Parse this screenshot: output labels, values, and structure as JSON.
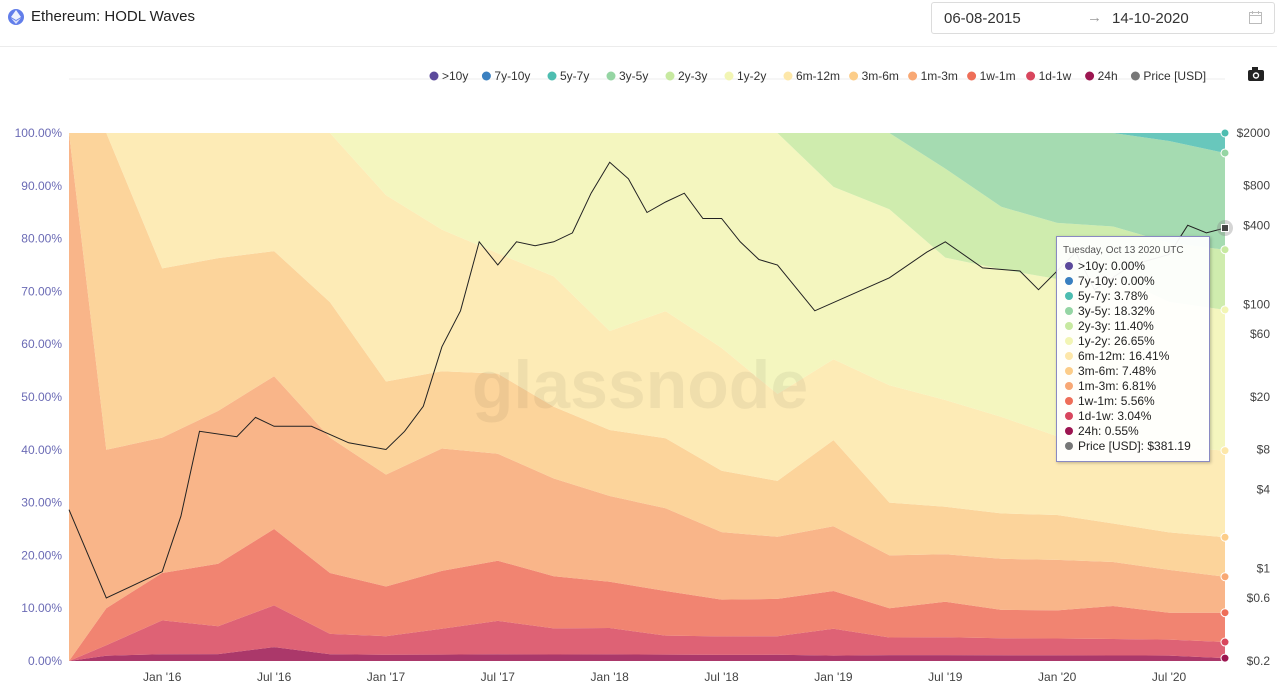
{
  "header": {
    "title": "Ethereum: HODL Waves",
    "date_start": "06-08-2015",
    "date_arrow": "→",
    "date_end": "14-10-2020"
  },
  "watermark": "glassnode",
  "tooltip": {
    "date": "Tuesday, Oct 13 2020 UTC",
    "rows": [
      {
        "label": ">10y",
        "value": "0.00%",
        "color": "#5b4a9b"
      },
      {
        "label": "7y-10y",
        "value": "0.00%",
        "color": "#3a80c0"
      },
      {
        "label": "5y-7y",
        "value": "3.78%",
        "color": "#4dbdb0"
      },
      {
        "label": "3y-5y",
        "value": "18.32%",
        "color": "#95d5a3"
      },
      {
        "label": "2y-3y",
        "value": "11.40%",
        "color": "#c7e9a0"
      },
      {
        "label": "1y-2y",
        "value": "26.65%",
        "color": "#f2f5b4"
      },
      {
        "label": "6m-12m",
        "value": "16.41%",
        "color": "#fde7a9"
      },
      {
        "label": "3m-6m",
        "value": "7.48%",
        "color": "#fccd89"
      },
      {
        "label": "1m-3m",
        "value": "6.81%",
        "color": "#f8a874"
      },
      {
        "label": "1w-1m",
        "value": "5.56%",
        "color": "#ee6e58"
      },
      {
        "label": "1d-1w",
        "value": "3.04%",
        "color": "#d8465d"
      },
      {
        "label": "24h",
        "value": "0.55%",
        "color": "#9c1550"
      },
      {
        "label": "Price [USD]",
        "value": "$381.19",
        "color": "#777777"
      }
    ]
  },
  "chart_data": {
    "type": "area",
    "title": "Ethereum: HODL Waves",
    "stacking": "percent",
    "legend_position": "top-right",
    "grid": false,
    "x_ticks": [
      "Jan '16",
      "Jul '16",
      "Jan '17",
      "Jul '17",
      "Jan '18",
      "Jul '18",
      "Jan '19",
      "Jul '19",
      "Jan '20",
      "Jul '20"
    ],
    "x_dates": [
      "2015-08",
      "2015-10",
      "2016-01",
      "2016-04",
      "2016-07",
      "2016-10",
      "2017-01",
      "2017-04",
      "2017-07",
      "2017-10",
      "2018-01",
      "2018-04",
      "2018-07",
      "2018-10",
      "2019-01",
      "2019-04",
      "2019-07",
      "2019-10",
      "2020-01",
      "2020-04",
      "2020-07",
      "2020-10"
    ],
    "y_left_ticks": [
      "0.00%",
      "10.00%",
      "20.00%",
      "30.00%",
      "40.00%",
      "50.00%",
      "60.00%",
      "70.00%",
      "80.00%",
      "90.00%",
      "100.00%"
    ],
    "ylim_left": [
      0,
      100
    ],
    "y_right_ticks": [
      "$0.2",
      "$0.6",
      "$1",
      "$4",
      "$8",
      "$20",
      "$60",
      "$100",
      "$400",
      "$800",
      "$2000"
    ],
    "y_right_scale": "log",
    "ylim_right": [
      0.2,
      2000
    ],
    "series": [
      {
        "name": ">10y",
        "color": "#5b4a9b",
        "values": [
          0,
          0,
          0,
          0,
          0,
          0,
          0,
          0,
          0,
          0,
          0,
          0,
          0,
          0,
          0,
          0,
          0,
          0,
          0,
          0,
          0,
          0
        ]
      },
      {
        "name": "7y-10y",
        "color": "#3a80c0",
        "values": [
          0,
          0,
          0,
          0,
          0,
          0,
          0,
          0,
          0,
          0,
          0,
          0,
          0,
          0,
          0,
          0,
          0,
          0,
          0,
          0,
          0,
          0
        ]
      },
      {
        "name": "5y-7y",
        "color": "#4dbdb0",
        "values": [
          0,
          0,
          0,
          0,
          0,
          0,
          0,
          0,
          0,
          0,
          0,
          0,
          0,
          0,
          0,
          0,
          0,
          0,
          0,
          0,
          1.5,
          3.78
        ]
      },
      {
        "name": "3y-5y",
        "color": "#95d5a3",
        "values": [
          0,
          0,
          0,
          0,
          0,
          0,
          0,
          0,
          0,
          0,
          0,
          0,
          0,
          0,
          0,
          0,
          6,
          13,
          16,
          17,
          19,
          18.32
        ]
      },
      {
        "name": "2y-3y",
        "color": "#c7e9a0",
        "values": [
          0,
          0,
          0,
          0,
          0,
          0,
          0,
          0,
          0,
          0,
          0,
          0,
          0,
          0,
          10,
          13,
          15,
          11,
          10,
          9,
          11,
          11.4
        ]
      },
      {
        "name": "1y-2y",
        "color": "#f2f5b4",
        "values": [
          0,
          0,
          0,
          0,
          0,
          0,
          10,
          15,
          18,
          22,
          30,
          28,
          35,
          42,
          32,
          30,
          24,
          26,
          28,
          30,
          27,
          26.65
        ]
      },
      {
        "name": "6m-12m",
        "color": "#fde7a9",
        "values": [
          0,
          0,
          20,
          18,
          17,
          25,
          30,
          22,
          18,
          20,
          15,
          20,
          20,
          14,
          15,
          20,
          18,
          17,
          14,
          15,
          16,
          16.41
        ]
      },
      {
        "name": "3m-6m",
        "color": "#fccd89",
        "values": [
          0,
          60,
          25,
          22,
          18,
          20,
          15,
          12,
          12,
          11,
          10,
          11,
          10,
          9,
          16,
          9,
          8,
          8,
          8,
          7,
          7,
          7.48
        ]
      },
      {
        "name": "1m-3m",
        "color": "#f8a874",
        "values": [
          100,
          30,
          20,
          22,
          22,
          20,
          18,
          19,
          16,
          15,
          13,
          13,
          11,
          10,
          12,
          9,
          8,
          9,
          9,
          8,
          8,
          6.81
        ]
      },
      {
        "name": "1w-1m",
        "color": "#ee6e58",
        "values": [
          0,
          7,
          7,
          9,
          11,
          9,
          8,
          9,
          9,
          8,
          7,
          7,
          6,
          6,
          7,
          5,
          6,
          5,
          5,
          6,
          5,
          5.56
        ]
      },
      {
        "name": "1d-1w",
        "color": "#d8465d",
        "values": [
          0,
          2,
          5,
          4,
          6,
          3,
          3,
          4,
          5,
          4,
          4,
          3,
          3,
          3,
          5,
          3,
          3,
          3,
          3,
          3,
          3,
          3.04
        ]
      },
      {
        "name": "24h",
        "color": "#9c1550",
        "values": [
          0,
          1,
          1,
          1,
          2,
          1,
          1,
          1,
          1,
          1,
          1,
          1,
          1,
          1,
          1,
          1,
          1,
          1,
          1,
          1,
          1,
          0.55
        ]
      }
    ],
    "price": {
      "name": "Price [USD]",
      "color": "#777777",
      "x": [
        "2015-08",
        "2015-10",
        "2016-01",
        "2016-02",
        "2016-03",
        "2016-05",
        "2016-06",
        "2016-07",
        "2016-09",
        "2016-11",
        "2017-01",
        "2017-02",
        "2017-03",
        "2017-04",
        "2017-05",
        "2017-06",
        "2017-07",
        "2017-08",
        "2017-09",
        "2017-10",
        "2017-11",
        "2017-12",
        "2018-01",
        "2018-02",
        "2018-03",
        "2018-04",
        "2018-05",
        "2018-06",
        "2018-07",
        "2018-08",
        "2018-09",
        "2018-10",
        "2018-12",
        "2019-02",
        "2019-04",
        "2019-06",
        "2019-07",
        "2019-09",
        "2019-11",
        "2019-12",
        "2020-02",
        "2020-03",
        "2020-05",
        "2020-07",
        "2020-08",
        "2020-09",
        "2020-10"
      ],
      "y": [
        2.8,
        0.6,
        0.95,
        2.5,
        11,
        10,
        14,
        12,
        12,
        9,
        8,
        11,
        17,
        48,
        90,
        300,
        200,
        300,
        280,
        300,
        350,
        700,
        1200,
        900,
        500,
        600,
        700,
        450,
        450,
        300,
        220,
        200,
        90,
        120,
        160,
        250,
        300,
        190,
        180,
        130,
        250,
        130,
        200,
        240,
        400,
        350,
        381.19
      ]
    }
  }
}
